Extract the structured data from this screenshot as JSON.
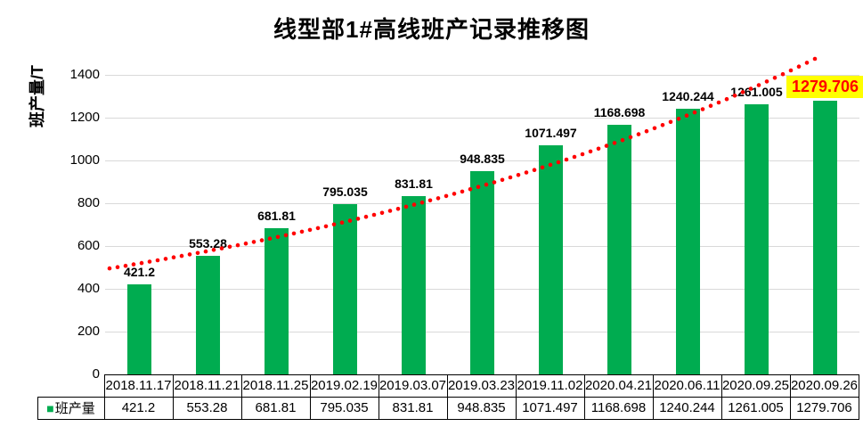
{
  "title": "线型部1#高线班产记录推移图",
  "y_axis": {
    "title": "班产量/T"
  },
  "legend": {
    "label": "班产量",
    "marker": "■",
    "marker_color": "#00AC50"
  },
  "chart_data": {
    "type": "bar",
    "title": "线型部1#高线班产记录推移图",
    "xlabel": "",
    "ylabel": "班产量/T",
    "series_name": "班产量",
    "categories": [
      "2018.11.17",
      "2018.11.21",
      "2018.11.25",
      "2019.02.19",
      "2019.03.07",
      "2019.03.23",
      "2019.11.02",
      "2020.04.21",
      "2020.06.11",
      "2020.09.25",
      "2020.09.26"
    ],
    "values": [
      421.2,
      553.28,
      681.81,
      795.035,
      831.81,
      948.835,
      1071.497,
      1168.698,
      1240.244,
      1261.005,
      1279.706
    ],
    "data_labels": [
      "421.2",
      "553.28",
      "681.81",
      "795.035",
      "831.81",
      "948.835",
      "1071.497",
      "1168.698",
      "1240.244",
      "1261.005",
      "1279.706"
    ],
    "ylim": [
      0,
      1500
    ],
    "yticks": [
      0,
      200,
      400,
      600,
      800,
      1000,
      1200,
      1400
    ],
    "grid": true,
    "legend_position": "data-table-left",
    "bar_color": "#00AC50",
    "label_color": "#000000",
    "highlight_last_label": {
      "background": "#FFFF00",
      "color": "#FF0000"
    },
    "trendline": {
      "fit": "exponential",
      "style": "dotted",
      "color": "#FF0000"
    }
  },
  "table": {
    "legend_cell": "班产量",
    "dates_row": [
      "2018.11.17",
      "2018.11.21",
      "2018.11.25",
      "2019.02.19",
      "2019.03.07",
      "2019.03.23",
      "2019.11.02",
      "2020.04.21",
      "2020.06.11",
      "2020.09.25",
      "2020.09.26"
    ],
    "values_row": [
      "421.2",
      "553.28",
      "681.81",
      "795.035",
      "831.81",
      "948.835",
      "1071.497",
      "1168.698",
      "1240.244",
      "1261.005",
      "1279.706"
    ]
  }
}
